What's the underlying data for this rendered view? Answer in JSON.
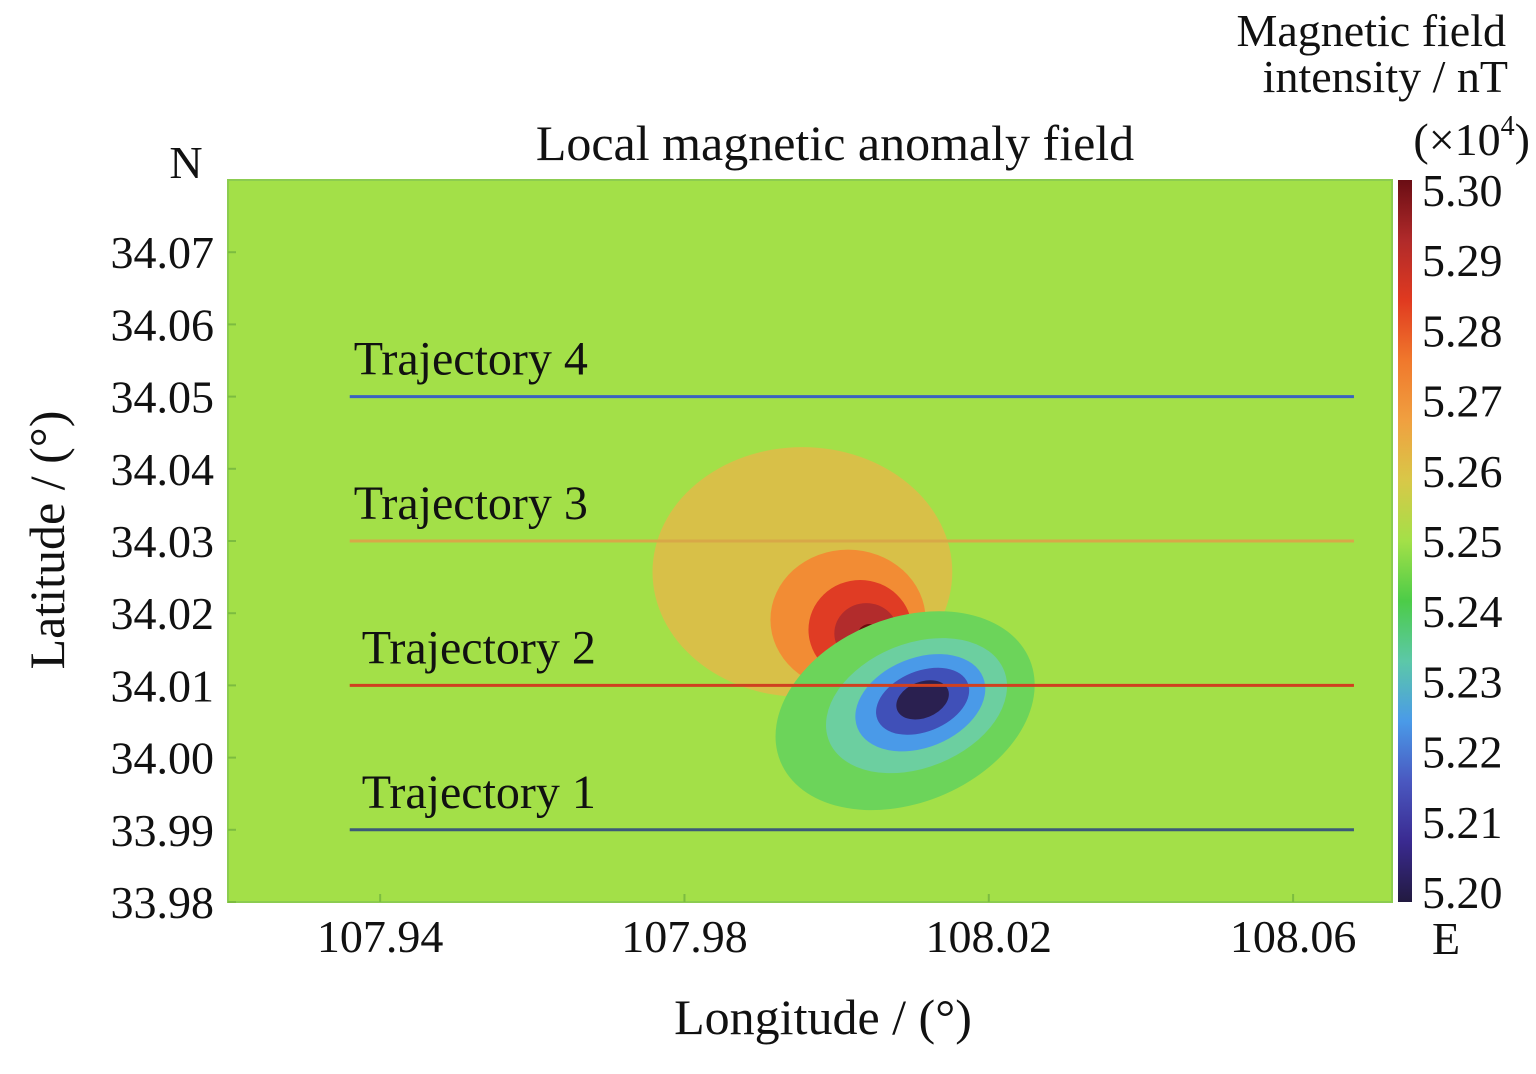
{
  "chart_data": {
    "type": "heatmap",
    "title": "Local magnetic anomaly field",
    "xlabel": "Longitude / (°)",
    "ylabel": "Latitude / (°)",
    "north_label": "N",
    "east_label": "E",
    "xlim": [
      107.92,
      108.073
    ],
    "ylim": [
      33.98,
      34.08
    ],
    "xticks": [
      "107.94",
      "107.98",
      "108.02",
      "108.06"
    ],
    "xtick_values": [
      107.94,
      107.98,
      108.02,
      108.06
    ],
    "yticks": [
      "34.07",
      "34.06",
      "34.05",
      "34.04",
      "34.03",
      "34.02",
      "34.01",
      "34.00",
      "33.99",
      "33.98"
    ],
    "ytick_values": [
      34.07,
      34.06,
      34.05,
      34.04,
      34.03,
      34.02,
      34.01,
      34.0,
      33.99,
      33.98
    ],
    "colorbar": {
      "title_line1": "Magnetic field",
      "title_line2": "intensity / nT",
      "title_line3": "(×10",
      "title_exp": "4",
      "title_close": ")",
      "range": [
        5.2,
        5.3
      ],
      "ticks": [
        "5.30",
        "5.29",
        "5.28",
        "5.27",
        "5.26",
        "5.25",
        "5.24",
        "5.23",
        "5.22",
        "5.21",
        "5.20"
      ],
      "tick_values": [
        5.3,
        5.29,
        5.28,
        5.27,
        5.26,
        5.25,
        5.24,
        5.23,
        5.22,
        5.21,
        5.2
      ],
      "colors": [
        "#6a0d14",
        "#b02a2a",
        "#e03a20",
        "#f0782c",
        "#f0a040",
        "#d8c848",
        "#a3e048",
        "#4ccc48",
        "#5cc8a8",
        "#4a9ae8",
        "#4a58c0",
        "#3a2a90",
        "#221a40"
      ]
    },
    "background_value": 5.25,
    "background_color": "#a3e048",
    "contours": [
      {
        "level": 5.26,
        "color": "#d8c048",
        "lon": 107.9955,
        "lat": 34.0257,
        "rlon": 0.0197,
        "rlat": 0.0173,
        "rot": 0
      },
      {
        "level": 5.27,
        "color": "#f28c34",
        "lon": 108.0015,
        "lat": 34.0191,
        "rlon": 0.0102,
        "rlat": 0.0097,
        "rot": 0
      },
      {
        "level": 5.28,
        "color": "#e03c24",
        "lon": 108.0031,
        "lat": 34.0177,
        "rlon": 0.0068,
        "rlat": 0.0069,
        "rot": 0
      },
      {
        "level": 5.29,
        "color": "#b22c2c",
        "lon": 108.0039,
        "lat": 34.0172,
        "rlon": 0.0042,
        "rlat": 0.0042,
        "rot": 0
      },
      {
        "level": 5.3,
        "color": "#6a0d0d",
        "lon": 108.0043,
        "lat": 34.0168,
        "rlon": 0.0016,
        "rlat": 0.0017,
        "rot": 0
      },
      {
        "level": 5.24,
        "color": "#6cd45a",
        "lon": 108.009,
        "lat": 34.0065,
        "rlon": 0.0177,
        "rlat": 0.0128,
        "rot": -22
      },
      {
        "level": 5.23,
        "color": "#6ccfa0",
        "lon": 108.0105,
        "lat": 34.0072,
        "rlon": 0.0124,
        "rlat": 0.0086,
        "rot": -22
      },
      {
        "level": 5.22,
        "color": "#4a9ae8",
        "lon": 108.011,
        "lat": 34.0076,
        "rlon": 0.0089,
        "rlat": 0.0062,
        "rot": -22
      },
      {
        "level": 5.21,
        "color": "#4050b8",
        "lon": 108.0113,
        "lat": 34.0078,
        "rlon": 0.0064,
        "rlat": 0.0042,
        "rot": -22
      },
      {
        "level": 5.2,
        "color": "#2a2050",
        "lon": 108.0113,
        "lat": 34.008,
        "rlon": 0.0036,
        "rlat": 0.0025,
        "rot": -22
      }
    ],
    "trajectories": [
      {
        "label": "Trajectory 4",
        "lat": 34.05,
        "lon_start": 107.936,
        "lon_end": 108.068,
        "color": "#3a62c0"
      },
      {
        "label": "Trajectory 3",
        "lat": 34.03,
        "lon_start": 107.936,
        "lon_end": 108.068,
        "color": "#d8a848"
      },
      {
        "label": "Trajectory 2",
        "lat": 34.01,
        "lon_start": 107.936,
        "lon_end": 108.068,
        "color": "#d04020"
      },
      {
        "label": "Trajectory 1",
        "lat": 33.99,
        "lon_start": 107.936,
        "lon_end": 108.068,
        "color": "#3c5a78"
      }
    ]
  }
}
